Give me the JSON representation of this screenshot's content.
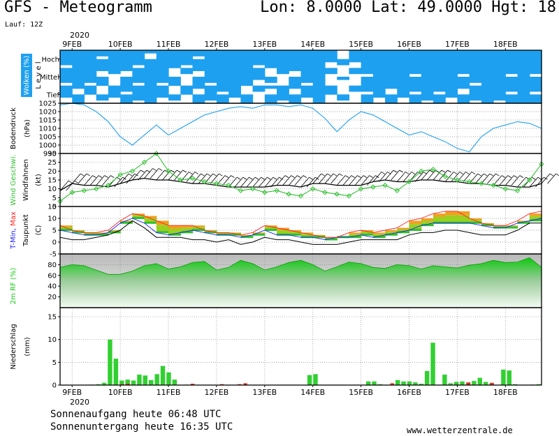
{
  "header": {
    "title": "GFS - Meteogramm",
    "coords": "Lon: 8.0000 Lat: 49.0000 Hgt: 18",
    "run": "Lauf: 12Z"
  },
  "footer": {
    "sunrise": "Sonnenaufgang heute 06:48 UTC",
    "sunset": "Sonnenuntergang heute 16:35 UTC",
    "site": "www.wetterzentrale.de"
  },
  "colors": {
    "cloud": "#1ea0f0",
    "pressure": "#1ea0f0",
    "wind": "#30c030",
    "tmin": "#2020ff",
    "tmax": "#ff2020",
    "dewpoint": "#000000",
    "humidity": "#18c818",
    "precip": "#30d030",
    "precip_red": "#e03020"
  },
  "chart_data": {
    "x_axis": {
      "year": "2020",
      "days": [
        "9FEB",
        "10FEB",
        "11FEB",
        "12FEB",
        "13FEB",
        "14FEB",
        "15FEB",
        "16FEB",
        "17FEB",
        "18FEB"
      ],
      "step_hours": 6,
      "start": "2020-02-08 18:00 UTC",
      "end": "2020-02-18 18:00 UTC"
    },
    "panels": [
      {
        "name": "clouds",
        "type": "heatmap",
        "ylabel": "Wolken (%)",
        "ylabel2": "L e v e l",
        "levels": [
          "Hoch",
          "Mittel",
          "Tief"
        ],
        "series": [
          {
            "name": "Hoch",
            "values": [
              90,
              100,
              100,
              80,
              100,
              100,
              90,
              70,
              100,
              100,
              90,
              80,
              100,
              100,
              100,
              100,
              90,
              100,
              100,
              100,
              100,
              100,
              60,
              40,
              60,
              100,
              100,
              100,
              100,
              100,
              100,
              100,
              100,
              100,
              100,
              100,
              100,
              100,
              100,
              100,
              100
            ]
          },
          {
            "name": "Mittel",
            "values": [
              80,
              100,
              90,
              60,
              40,
              70,
              90,
              100,
              80,
              50,
              40,
              70,
              90,
              100,
              100,
              100,
              60,
              40,
              40,
              70,
              90,
              100,
              40,
              20,
              30,
              80,
              100,
              100,
              100,
              90,
              100,
              100,
              100,
              80,
              80,
              100,
              100,
              90,
              100,
              90,
              80
            ]
          },
          {
            "name": "Tief",
            "values": [
              60,
              70,
              50,
              40,
              60,
              80,
              90,
              100,
              60,
              40,
              50,
              70,
              80,
              90,
              70,
              50,
              40,
              60,
              80,
              70,
              60,
              100,
              50,
              30,
              40,
              80,
              60,
              60,
              70,
              80,
              90,
              80,
              70,
              60,
              80,
              100,
              90,
              80,
              100,
              80,
              70
            ]
          }
        ]
      },
      {
        "name": "pressure",
        "type": "line",
        "ylabel": "Bodendruck",
        "unit": "(hPa)",
        "ylim": [
          995,
          1025
        ],
        "yticks": [
          995,
          1000,
          1005,
          1010,
          1015,
          1020,
          1025
        ],
        "values": [
          1024,
          1025,
          1024,
          1020,
          1014,
          1005,
          1000,
          1006,
          1012,
          1006,
          1010,
          1014,
          1018,
          1020,
          1022,
          1023,
          1022,
          1024,
          1024,
          1023,
          1024,
          1022,
          1016,
          1008,
          1015,
          1020,
          1018,
          1014,
          1010,
          1006,
          1008,
          1005,
          1002,
          998,
          996,
          1005,
          1010,
          1012,
          1014,
          1013,
          1010
        ]
      },
      {
        "name": "wind",
        "type": "line",
        "ylabel": "Wind Geschwi.",
        "ylabel2": "Windfahnen",
        "unit": "(kt)",
        "ylim": [
          0,
          30
        ],
        "yticks": [
          0,
          5,
          10,
          15,
          20,
          25,
          30
        ],
        "series": [
          {
            "name": "Wind Geschwi.",
            "values": [
              3,
              8,
              9,
              10,
              12,
              18,
              20,
              25,
              30,
              20,
              15,
              16,
              14,
              13,
              12,
              9,
              10,
              8,
              9,
              7,
              6,
              10,
              8,
              7,
              6,
              10,
              11,
              12,
              9,
              14,
              20,
              21,
              17,
              15,
              14,
              13,
              12,
              10,
              9,
              15,
              24
            ]
          },
          {
            "name": "Windfahnen",
            "values": [
              9,
              13,
              12,
              12,
              11,
              13,
              15,
              16,
              15,
              15,
              14,
              13,
              13,
              12,
              11,
              11,
              11,
              11,
              12,
              12,
              11,
              13,
              13,
              12,
              12,
              12,
              14,
              15,
              14,
              14,
              15,
              15,
              14,
              14,
              13,
              13,
              12,
              12,
              11,
              11,
              13
            ]
          }
        ]
      },
      {
        "name": "temperature",
        "type": "area",
        "ylabel": "T-Min, Max",
        "ylabel2": "Taupunkt",
        "unit": "(C)",
        "ylim": [
          -5,
          15
        ],
        "yticks": [
          -5,
          0,
          5,
          10,
          15
        ],
        "series": [
          {
            "name": "T-Min",
            "values": [
              5,
              4,
              3,
              3,
              4,
              8,
              10,
              8,
              4,
              3,
              4,
              5,
              4,
              3,
              3,
              2,
              3,
              5,
              3,
              3,
              2,
              2,
              1,
              2,
              2,
              3,
              2,
              3,
              4,
              5,
              7,
              8,
              8,
              8,
              8,
              7,
              6,
              6,
              8,
              9,
              10
            ]
          },
          {
            "name": "T-Max",
            "values": [
              7,
              5,
              4,
              4,
              5,
              9,
              12,
              11,
              9,
              7,
              7,
              7,
              5,
              4,
              4,
              3,
              4,
              7,
              6,
              5,
              4,
              3,
              2,
              2,
              4,
              5,
              4,
              5,
              6,
              9,
              10,
              12,
              13,
              13,
              10,
              8,
              7,
              7,
              9,
              12,
              13
            ]
          },
          {
            "name": "Taupunkt",
            "values": [
              2,
              1,
              1,
              2,
              3,
              5,
              9,
              6,
              2,
              2,
              2,
              1,
              1,
              0,
              1,
              -1,
              0,
              2,
              1,
              1,
              0,
              -1,
              -1,
              -1,
              0,
              1,
              1,
              1,
              1,
              3,
              4,
              4,
              5,
              5,
              4,
              3,
              3,
              3,
              5,
              8,
              8
            ]
          }
        ]
      },
      {
        "name": "humidity",
        "type": "area",
        "ylabel": "2m RF (%)",
        "ylim": [
          0,
          100
        ],
        "yticks": [
          20,
          40,
          60,
          80
        ],
        "values": [
          75,
          80,
          78,
          70,
          62,
          62,
          68,
          78,
          82,
          72,
          76,
          84,
          86,
          70,
          75,
          88,
          82,
          70,
          76,
          84,
          88,
          80,
          68,
          76,
          85,
          82,
          75,
          73,
          80,
          78,
          72,
          78,
          76,
          74,
          79,
          82,
          88,
          84,
          85,
          93,
          75
        ]
      },
      {
        "name": "precipitation",
        "type": "bar",
        "ylabel": "Niederschlag",
        "unit": "(mm)",
        "ylim": [
          0,
          17
        ],
        "yticks": [
          0,
          5,
          10,
          15
        ],
        "values": [
          0,
          0,
          0,
          0,
          0,
          0.1,
          0.2,
          0.5,
          10,
          5.8,
          1,
          1.2,
          1,
          2.3,
          2.1,
          1.1,
          2.4,
          4.2,
          2.8,
          1.2,
          0,
          0.1,
          0,
          0,
          0,
          0,
          0,
          0,
          0,
          0,
          0,
          0,
          0,
          0,
          0,
          0,
          0,
          0,
          0,
          0,
          0,
          0,
          2.2,
          2.4,
          0,
          0,
          0,
          0,
          0,
          0,
          0,
          0,
          0.8,
          0.8,
          0.2,
          0,
          0,
          1.1,
          0.8,
          0.8,
          0.6,
          0.3,
          3.1,
          9.3,
          0,
          2.3,
          0.4,
          0.7,
          0.8,
          0.5,
          0.9,
          1.6,
          0.7,
          0.4,
          0,
          3.4,
          3.2,
          0.2,
          0,
          0,
          0.1,
          0.2
        ],
        "red_values": [
          0,
          0,
          0,
          0,
          0,
          0,
          0,
          0,
          0,
          0,
          0.2,
          0.3,
          0,
          0,
          0,
          0,
          0,
          0,
          0,
          0,
          0,
          0,
          0.3,
          0,
          0,
          0,
          0,
          0.2,
          0,
          0,
          0.2,
          0.4,
          0,
          0,
          0,
          0,
          0,
          0,
          0,
          0,
          0,
          0,
          0,
          0,
          0,
          0,
          0,
          0,
          0,
          0,
          0,
          0,
          0,
          0,
          0,
          0,
          0.4,
          0,
          0,
          0,
          0,
          0,
          0,
          0,
          0,
          0,
          0,
          0,
          0,
          0.6,
          0,
          0,
          0,
          0.5,
          0,
          0,
          0,
          0,
          0,
          0,
          0,
          0
        ]
      }
    ]
  }
}
